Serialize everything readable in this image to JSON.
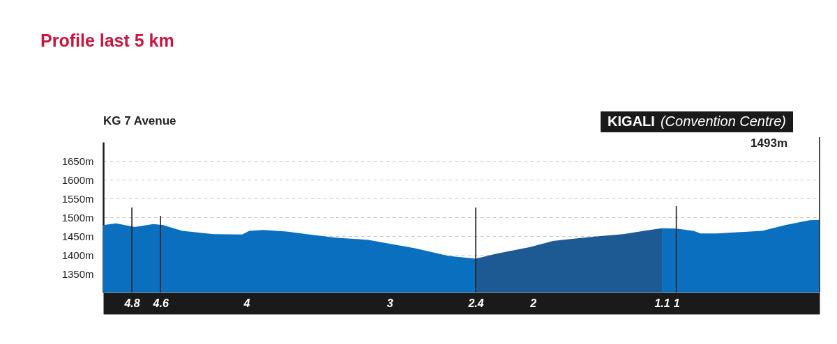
{
  "chart_data": {
    "type": "area",
    "title": "Profile last 5 km",
    "series": [
      {
        "color": "#0b6fc0",
        "x": [
          5,
          4.91,
          4.78,
          4.65,
          4.58,
          4.45,
          4.23,
          4.03,
          3.98,
          3.88,
          3.72,
          3.56,
          3.38,
          3.15,
          2.83,
          2.59,
          2.4,
          1.8,
          1.1,
          1.0,
          0.88,
          0.83,
          0.72,
          0.4,
          0.24,
          0.07,
          0
        ],
        "values": [
          1479,
          1484,
          1474,
          1482,
          1479,
          1464,
          1455,
          1454,
          1464,
          1466,
          1462,
          1454,
          1446,
          1440,
          1418,
          1397,
          1390,
          null,
          1471,
          1470,
          1464,
          1457,
          1457,
          1464,
          1479,
          1492,
          1493
        ]
      },
      {
        "color": "#1d5a94",
        "x": [
          2.4,
          2.26,
          2.02,
          1.86,
          1.69,
          1.53,
          1.37,
          1.21,
          1.1
        ],
        "values": [
          1390,
          1403,
          1421,
          1437,
          1444,
          1450,
          1455,
          1465,
          1471
        ]
      }
    ],
    "xlim": [
      5,
      0
    ],
    "xticks": [
      4.8,
      4.6,
      4,
      3,
      2.4,
      2,
      1.1,
      1
    ],
    "ylim": [
      1300,
      1700
    ],
    "yticks": [
      {
        "value": 1350,
        "label": "1350m"
      },
      {
        "value": 1400,
        "label": "1400m"
      },
      {
        "value": 1450,
        "label": "1450m"
      },
      {
        "value": 1500,
        "label": "1500m"
      },
      {
        "value": 1550,
        "label": "1550m"
      },
      {
        "value": 1600,
        "label": "1600m"
      },
      {
        "value": 1650,
        "label": "1650m"
      }
    ],
    "grid": "y",
    "ref_lines": [
      {
        "axis": "x",
        "value": 4.8,
        "color": "#222222"
      },
      {
        "axis": "x",
        "value": 4.6,
        "color": "#222222"
      },
      {
        "axis": "x",
        "value": 2.4,
        "color": "#222222"
      },
      {
        "axis": "x",
        "value": 1,
        "color": "#222222"
      },
      {
        "axis": "x",
        "value": 0,
        "color": "#222222"
      }
    ],
    "annotations": [
      "KG 7 Avenue",
      "KIGALI (Convention Centre)",
      "1493m"
    ]
  }
}
